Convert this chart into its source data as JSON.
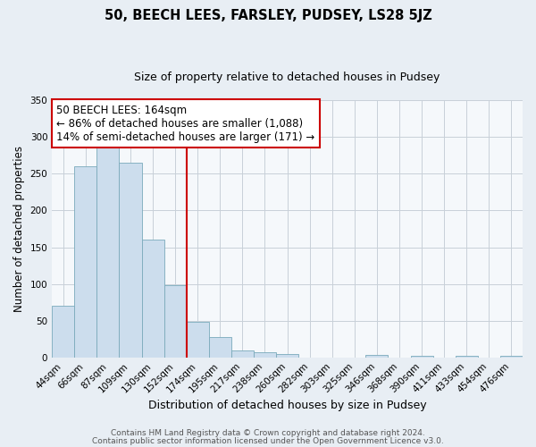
{
  "title": "50, BEECH LEES, FARSLEY, PUDSEY, LS28 5JZ",
  "subtitle": "Size of property relative to detached houses in Pudsey",
  "xlabel": "Distribution of detached houses by size in Pudsey",
  "ylabel": "Number of detached properties",
  "bin_labels": [
    "44sqm",
    "66sqm",
    "87sqm",
    "109sqm",
    "130sqm",
    "152sqm",
    "174sqm",
    "195sqm",
    "217sqm",
    "238sqm",
    "260sqm",
    "282sqm",
    "303sqm",
    "325sqm",
    "346sqm",
    "368sqm",
    "390sqm",
    "411sqm",
    "433sqm",
    "454sqm",
    "476sqm"
  ],
  "bar_values": [
    70,
    260,
    295,
    265,
    160,
    98,
    48,
    28,
    10,
    7,
    5,
    0,
    0,
    0,
    3,
    0,
    2,
    0,
    2,
    0,
    2
  ],
  "bar_color": "#ccdded",
  "bar_edge_color": "#7aaabb",
  "vline_x_idx": 6,
  "vline_color": "#cc0000",
  "ylim": [
    0,
    350
  ],
  "yticks": [
    0,
    50,
    100,
    150,
    200,
    250,
    300,
    350
  ],
  "annotation_title": "50 BEECH LEES: 164sqm",
  "annotation_line1": "← 86% of detached houses are smaller (1,088)",
  "annotation_line2": "14% of semi-detached houses are larger (171) →",
  "annotation_box_color": "#ffffff",
  "annotation_box_edge": "#cc0000",
  "footer1": "Contains HM Land Registry data © Crown copyright and database right 2024.",
  "footer2": "Contains public sector information licensed under the Open Government Licence v3.0.",
  "background_color": "#e8eef4",
  "plot_background": "#f5f8fb",
  "grid_color": "#c8d0d8",
  "title_fontsize": 10.5,
  "subtitle_fontsize": 9,
  "xlabel_fontsize": 9,
  "ylabel_fontsize": 8.5,
  "tick_fontsize": 7.5,
  "ann_fontsize": 8.5,
  "footer_fontsize": 6.5
}
